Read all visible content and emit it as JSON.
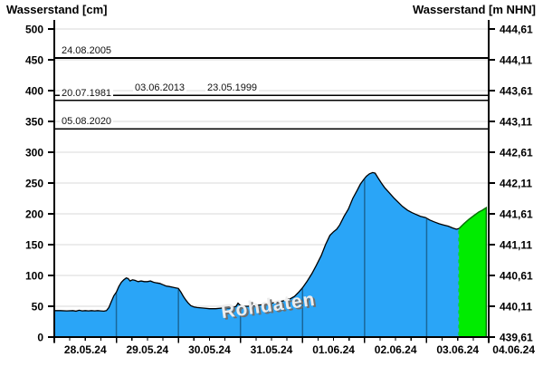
{
  "chart_data": {
    "type": "area",
    "title_left": "Wasserstand [cm]",
    "title_right": "Wasserstand [m NHN]",
    "watermark": "Rohdaten",
    "x_axis": {
      "labels": [
        "28.05.24",
        "29.05.24",
        "30.05.24",
        "31.05.24",
        "01.06.24",
        "02.06.24",
        "03.06.24",
        "04.06.24"
      ],
      "range_days": 7,
      "minor_ticks_per_day": 4
    },
    "y_left": {
      "min": 0,
      "max": 500,
      "step": 50,
      "tick_labels": [
        "500",
        "450",
        "400",
        "350",
        "300",
        "250",
        "200",
        "150",
        "100",
        "50",
        "0"
      ]
    },
    "y_right": {
      "tick_labels": [
        "444,61",
        "444,11",
        "443,61",
        "443,11",
        "442,61",
        "442,11",
        "441,61",
        "441,11",
        "440,61",
        "440,11",
        "439,61"
      ]
    },
    "reference_lines": [
      {
        "date": "24.08.2005",
        "cm": 453,
        "label_offset_x": 6
      },
      {
        "date": "03.06.2013",
        "cm": 392,
        "label_offset_x": 87
      },
      {
        "date": "23.05.1999",
        "cm": 392,
        "label_offset_x": 167
      },
      {
        "date": "20.07.1981",
        "cm": 384,
        "label_offset_x": 6
      },
      {
        "date": "05.08.2020",
        "cm": 338,
        "label_offset_x": 6
      }
    ],
    "colors": {
      "measured_fill": "#2AA5F7",
      "measured_outline": "#000000",
      "forecast_fill": "#00EC00",
      "forecast_outline": "#077507",
      "forecast_divider": "#00D435",
      "day_line": "rgba(0,0,0,0.38)",
      "grid": "#D9D9D9",
      "axis": "#000000",
      "reference_line": "#000000"
    },
    "series": {
      "measured": {
        "color": "#2AA5F7",
        "points": [
          [
            0,
            43
          ],
          [
            0.1,
            43
          ],
          [
            0.2,
            42.5
          ],
          [
            0.3,
            43
          ],
          [
            0.35,
            42
          ],
          [
            0.4,
            43.5
          ],
          [
            0.45,
            42.5
          ],
          [
            0.5,
            43
          ],
          [
            0.55,
            42.5
          ],
          [
            0.6,
            43
          ],
          [
            0.65,
            42.5
          ],
          [
            0.7,
            43
          ],
          [
            0.75,
            42.5
          ],
          [
            0.8,
            42
          ],
          [
            0.84,
            43
          ],
          [
            0.88,
            48
          ],
          [
            0.92,
            58
          ],
          [
            0.96,
            67
          ],
          [
            1.0,
            73
          ],
          [
            1.04,
            82
          ],
          [
            1.08,
            89
          ],
          [
            1.12,
            93
          ],
          [
            1.16,
            96
          ],
          [
            1.19,
            95
          ],
          [
            1.22,
            91
          ],
          [
            1.26,
            93
          ],
          [
            1.3,
            92
          ],
          [
            1.35,
            90
          ],
          [
            1.4,
            91
          ],
          [
            1.45,
            90
          ],
          [
            1.5,
            90
          ],
          [
            1.55,
            91
          ],
          [
            1.6,
            89
          ],
          [
            1.65,
            88
          ],
          [
            1.7,
            87
          ],
          [
            1.75,
            85
          ],
          [
            1.8,
            83
          ],
          [
            1.85,
            82
          ],
          [
            1.9,
            81
          ],
          [
            1.95,
            80
          ],
          [
            2.0,
            79
          ],
          [
            2.04,
            73
          ],
          [
            2.08,
            66
          ],
          [
            2.12,
            60
          ],
          [
            2.16,
            55
          ],
          [
            2.2,
            51
          ],
          [
            2.25,
            49
          ],
          [
            2.3,
            48
          ],
          [
            2.4,
            47
          ],
          [
            2.5,
            46
          ],
          [
            2.6,
            46
          ],
          [
            2.7,
            47
          ],
          [
            2.8,
            47
          ],
          [
            2.88,
            48
          ],
          [
            2.93,
            50
          ],
          [
            2.96,
            55
          ],
          [
            3.0,
            51
          ],
          [
            3.06,
            50
          ],
          [
            3.12,
            50
          ],
          [
            3.2,
            51
          ],
          [
            3.3,
            52
          ],
          [
            3.4,
            53
          ],
          [
            3.5,
            55
          ],
          [
            3.6,
            57
          ],
          [
            3.7,
            59
          ],
          [
            3.8,
            62
          ],
          [
            3.87,
            66
          ],
          [
            3.93,
            72
          ],
          [
            4.0,
            80
          ],
          [
            4.07,
            90
          ],
          [
            4.15,
            103
          ],
          [
            4.22,
            116
          ],
          [
            4.3,
            132
          ],
          [
            4.37,
            150
          ],
          [
            4.44,
            165
          ],
          [
            4.5,
            171
          ],
          [
            4.55,
            175
          ],
          [
            4.6,
            182
          ],
          [
            4.67,
            196
          ],
          [
            4.74,
            208
          ],
          [
            4.81,
            225
          ],
          [
            4.88,
            238
          ],
          [
            4.93,
            248
          ],
          [
            4.98,
            255
          ],
          [
            5.03,
            261
          ],
          [
            5.08,
            265
          ],
          [
            5.13,
            267
          ],
          [
            5.17,
            266
          ],
          [
            5.22,
            258
          ],
          [
            5.27,
            250
          ],
          [
            5.32,
            243
          ],
          [
            5.4,
            234
          ],
          [
            5.47,
            226
          ],
          [
            5.54,
            219
          ],
          [
            5.61,
            212
          ],
          [
            5.69,
            206
          ],
          [
            5.76,
            202
          ],
          [
            5.83,
            199
          ],
          [
            5.9,
            196
          ],
          [
            5.98,
            194
          ],
          [
            6.05,
            190
          ],
          [
            6.12,
            187
          ],
          [
            6.2,
            184
          ],
          [
            6.27,
            182
          ],
          [
            6.35,
            180
          ],
          [
            6.42,
            177
          ],
          [
            6.48,
            175
          ],
          [
            6.52,
            176
          ]
        ]
      },
      "forecast": {
        "color": "#00EC00",
        "points": [
          [
            6.52,
            176
          ],
          [
            6.6,
            184
          ],
          [
            6.68,
            191
          ],
          [
            6.76,
            197
          ],
          [
            6.84,
            203
          ],
          [
            6.9,
            206
          ],
          [
            6.96,
            210
          ]
        ]
      }
    }
  }
}
